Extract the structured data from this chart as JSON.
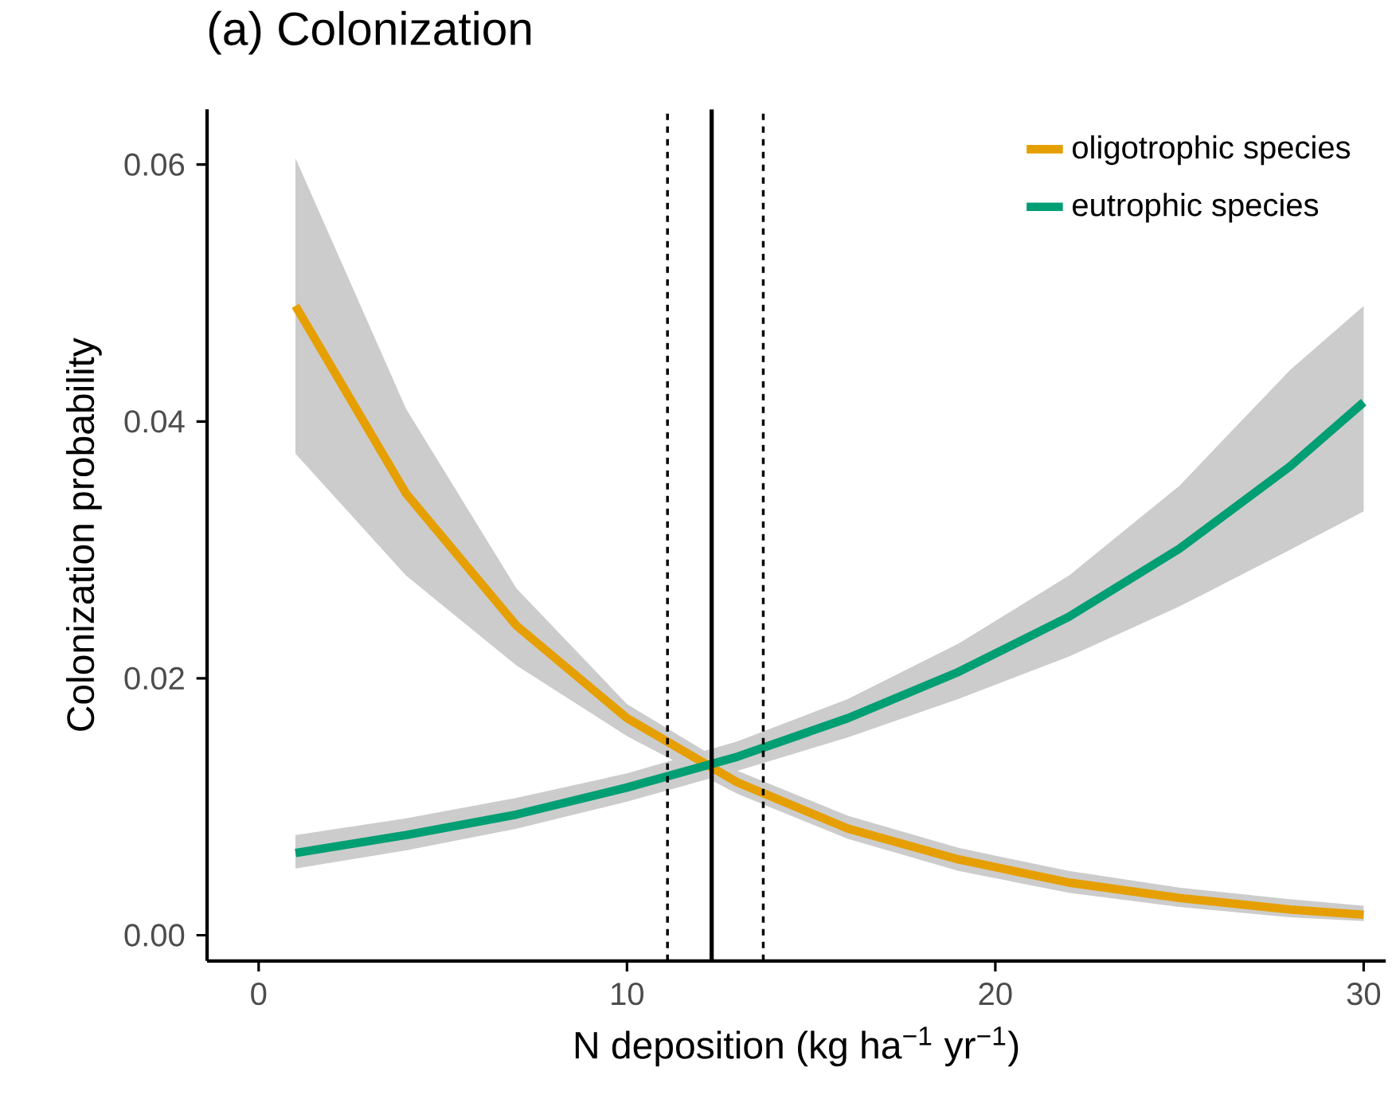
{
  "chart_data": {
    "type": "line",
    "title": "(a) Colonization",
    "xlabel": "N deposition (kg ha$^{−1}$ yr$^{−1}$)",
    "ylabel": "Colonization probability",
    "x": [
      1,
      4,
      7,
      10,
      13,
      16,
      19,
      22,
      25,
      28,
      30
    ],
    "series": [
      {
        "name": "oligotrophic species",
        "color": "#e69f00",
        "values": [
          0.049,
          0.0344,
          0.0241,
          0.0169,
          0.0119,
          0.0083,
          0.0059,
          0.0041,
          0.0029,
          0.002,
          0.0016
        ],
        "lower": [
          0.0375,
          0.028,
          0.021,
          0.0155,
          0.011,
          0.0075,
          0.005,
          0.0033,
          0.0022,
          0.0014,
          0.0011
        ],
        "upper": [
          0.0605,
          0.041,
          0.027,
          0.018,
          0.0128,
          0.0093,
          0.0068,
          0.005,
          0.0037,
          0.0028,
          0.0023
        ]
      },
      {
        "name": "eutrophic species",
        "color": "#009e73",
        "values": [
          0.0064,
          0.0078,
          0.0094,
          0.0115,
          0.0139,
          0.0169,
          0.0205,
          0.0248,
          0.0301,
          0.0365,
          0.0415
        ],
        "lower": [
          0.0052,
          0.0066,
          0.0083,
          0.0104,
          0.0128,
          0.0154,
          0.0184,
          0.0217,
          0.0256,
          0.03,
          0.033
        ],
        "upper": [
          0.0078,
          0.0091,
          0.0107,
          0.0126,
          0.0151,
          0.0184,
          0.0227,
          0.028,
          0.035,
          0.044,
          0.049
        ]
      }
    ],
    "xlim": [
      -1.4,
      30.6
    ],
    "ylim": [
      -0.002,
      0.0643
    ],
    "xticks": [
      0,
      10,
      20,
      30
    ],
    "yticks": [
      {
        "value": 0,
        "label": "0.00"
      },
      {
        "value": 0.02,
        "label": "0.02"
      },
      {
        "value": 0.04,
        "label": "0.04"
      },
      {
        "value": 0.06,
        "label": "0.06"
      }
    ],
    "ref_lines": [
      {
        "axis": "x",
        "value": 11.1,
        "line_style": "dashed"
      },
      {
        "axis": "x",
        "value": 12.3,
        "line_style": "solid"
      },
      {
        "axis": "x",
        "value": 13.7,
        "line_style": "dashed"
      }
    ],
    "grid": false,
    "legend": "top right",
    "line_style": "solid",
    "marker": "none"
  }
}
